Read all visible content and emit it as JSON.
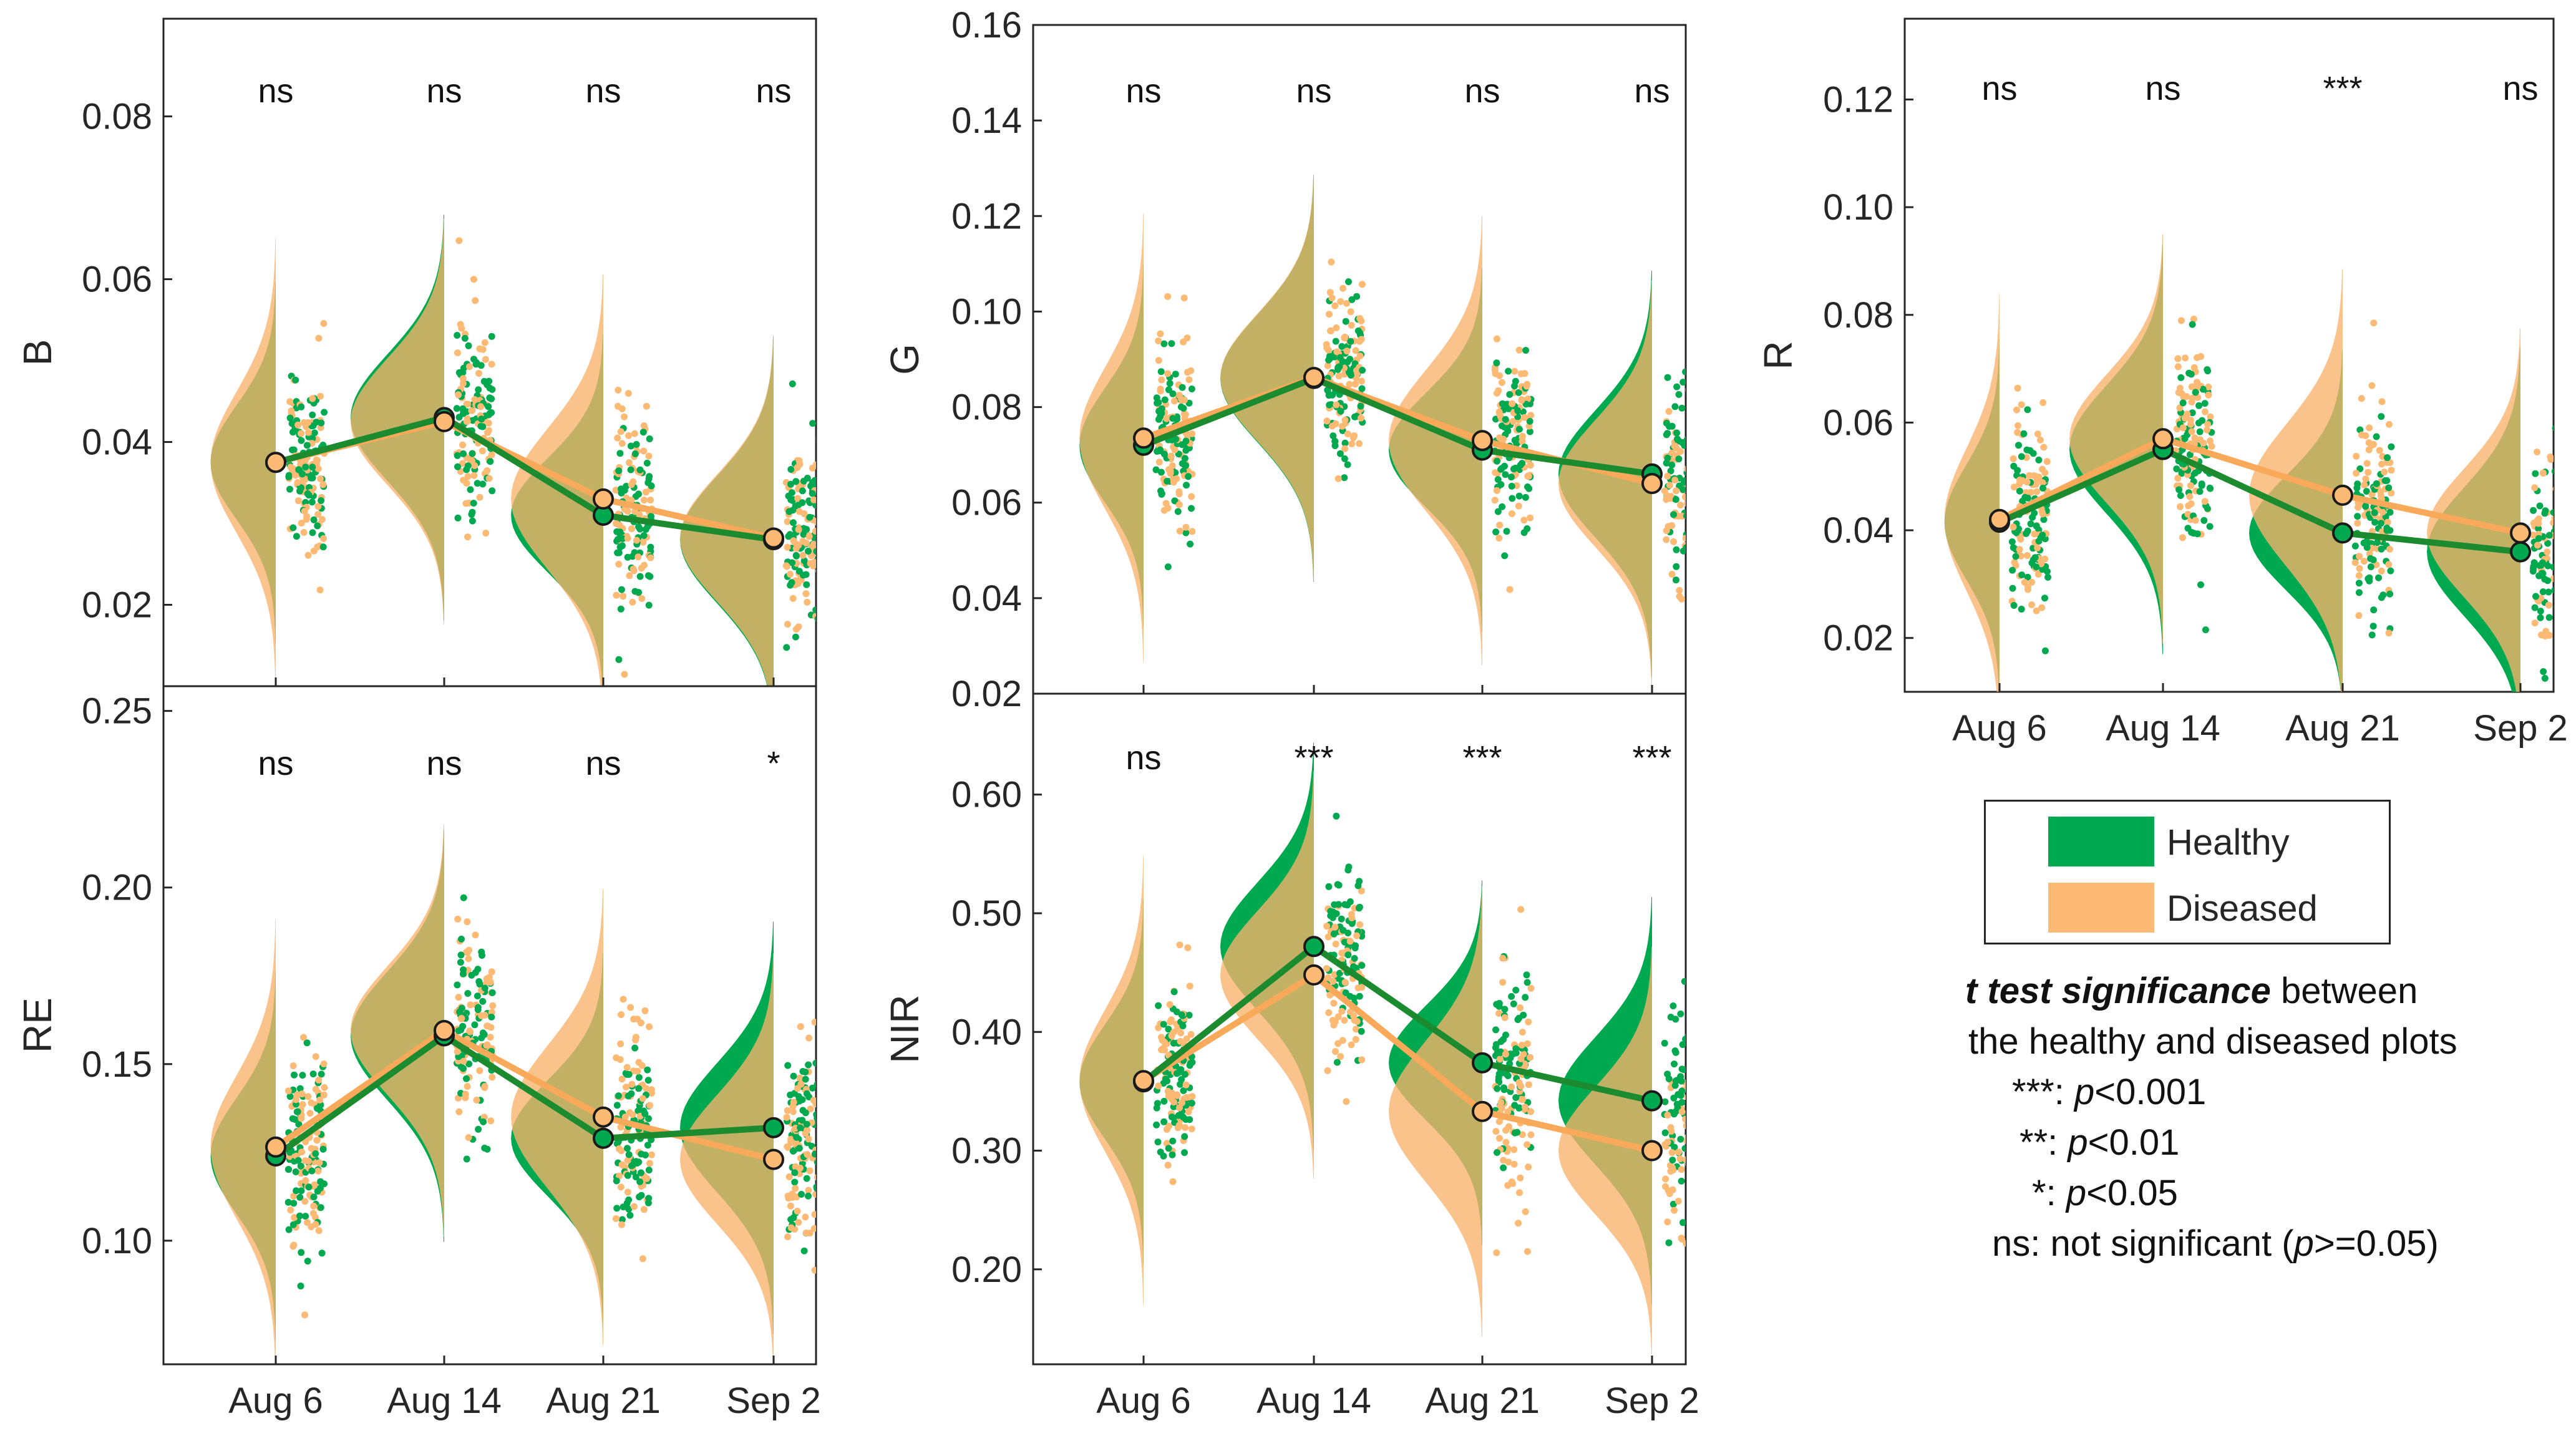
{
  "colors": {
    "healthy": "#00A94F",
    "diseased": "#FDBA74",
    "healthy_fill": "#00A94F",
    "diseased_fill": "#F9B26C",
    "overlap_fill": "#D9AE69",
    "healthy_line": "#1C8A2E",
    "diseased_line": "#F9A95A"
  },
  "legend": {
    "healthy_label": "Healthy",
    "diseased_label": "Diseased"
  },
  "significance_legend": {
    "title_bold": "t test significance",
    "title_rest": " between",
    "line2": "the healthy and diseased plots",
    "items": [
      {
        "code": "***:",
        "symbol": "p",
        "rest": "<0.001",
        "suffix": ""
      },
      {
        "code": "**:",
        "symbol": "p",
        "rest": "<0.01",
        "suffix": ""
      },
      {
        "code": "*:",
        "symbol": "p",
        "rest": "<0.05",
        "suffix": ""
      },
      {
        "code": "ns: not significant (",
        "symbol": "p",
        "rest": ">=0.05)",
        "suffix": ""
      }
    ]
  },
  "chart_data": [
    {
      "type": "line",
      "panel": "B",
      "ylabel": "B",
      "categories": [
        "Aug 6",
        "Aug 14",
        "Aug 21",
        "Sep 2"
      ],
      "ylim": [
        0.01,
        0.092
      ],
      "yticks": [
        0.02,
        0.04,
        0.06,
        0.08
      ],
      "ytick_labels": [
        "0.02",
        "0.04",
        "0.06",
        "0.08"
      ],
      "show_xticklabels": false,
      "significance": [
        "ns",
        "ns",
        "ns",
        "ns"
      ],
      "series": [
        {
          "name": "Healthy",
          "values": [
            0.0375,
            0.043,
            0.031,
            0.028
          ]
        },
        {
          "name": "Diseased",
          "values": [
            0.0375,
            0.0425,
            0.033,
            0.0282
          ]
        }
      ]
    },
    {
      "type": "line",
      "panel": "G",
      "ylabel": "G",
      "categories": [
        "Aug 6",
        "Aug 14",
        "Aug 21",
        "Sep 2"
      ],
      "ylim": [
        0.02,
        0.16
      ],
      "yticks": [
        0.02,
        0.04,
        0.06,
        0.08,
        0.1,
        0.12,
        0.14,
        0.16
      ],
      "ytick_labels": [
        "0.02",
        "0.04",
        "0.06",
        "0.08",
        "0.10",
        "0.12",
        "0.14",
        "0.16"
      ],
      "show_xticklabels": false,
      "significance": [
        "ns",
        "ns",
        "ns",
        "ns"
      ],
      "series": [
        {
          "name": "Healthy",
          "values": [
            0.072,
            0.086,
            0.071,
            0.066
          ]
        },
        {
          "name": "Diseased",
          "values": [
            0.0735,
            0.0862,
            0.073,
            0.064
          ]
        }
      ]
    },
    {
      "type": "line",
      "panel": "R",
      "ylabel": "R",
      "categories": [
        "Aug 6",
        "Aug 14",
        "Aug 21",
        "Sep 2"
      ],
      "ylim": [
        0.01,
        0.135
      ],
      "yticks": [
        0.02,
        0.04,
        0.06,
        0.08,
        0.1,
        0.12
      ],
      "ytick_labels": [
        "0.02",
        "0.04",
        "0.06",
        "0.08",
        "0.10",
        "0.12"
      ],
      "show_xticklabels": true,
      "significance": [
        "ns",
        "ns",
        "***",
        "ns"
      ],
      "series": [
        {
          "name": "Healthy",
          "values": [
            0.0415,
            0.055,
            0.0395,
            0.036
          ]
        },
        {
          "name": "Diseased",
          "values": [
            0.042,
            0.057,
            0.0465,
            0.0395
          ]
        }
      ]
    },
    {
      "type": "line",
      "panel": "RE",
      "ylabel": "RE",
      "categories": [
        "Aug 6",
        "Aug 14",
        "Aug 21",
        "Sep 2"
      ],
      "ylim": [
        0.065,
        0.257
      ],
      "yticks": [
        0.1,
        0.15,
        0.2,
        0.25
      ],
      "ytick_labels": [
        "0.10",
        "0.15",
        "0.20",
        "0.25"
      ],
      "show_xticklabels": true,
      "significance": [
        "ns",
        "ns",
        "ns",
        "*"
      ],
      "series": [
        {
          "name": "Healthy",
          "values": [
            0.124,
            0.158,
            0.129,
            0.132
          ]
        },
        {
          "name": "Diseased",
          "values": [
            0.1265,
            0.1595,
            0.135,
            0.123
          ]
        }
      ]
    },
    {
      "type": "line",
      "panel": "NIR",
      "ylabel": "NIR",
      "categories": [
        "Aug 6",
        "Aug 14",
        "Aug 21",
        "Sep 2"
      ],
      "ylim": [
        0.12,
        0.685
      ],
      "yticks": [
        0.2,
        0.3,
        0.4,
        0.5,
        0.6
      ],
      "ytick_labels": [
        "0.20",
        "0.30",
        "0.40",
        "0.50",
        "0.60"
      ],
      "show_xticklabels": true,
      "significance": [
        "ns",
        "***",
        "***",
        "***"
      ],
      "series": [
        {
          "name": "Healthy",
          "values": [
            0.358,
            0.472,
            0.374,
            0.342
          ]
        },
        {
          "name": "Diseased",
          "values": [
            0.359,
            0.448,
            0.333,
            0.3
          ]
        }
      ]
    }
  ]
}
